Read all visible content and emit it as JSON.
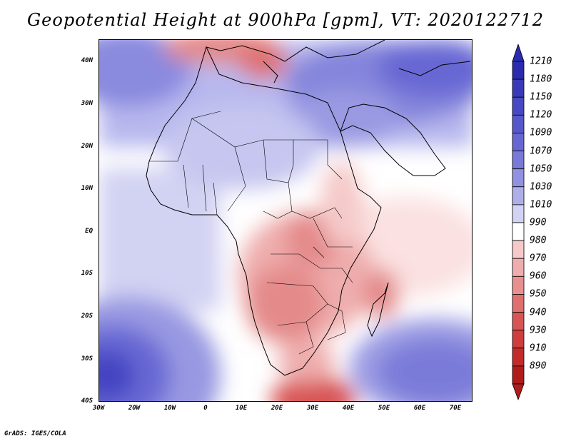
{
  "title": "Geopotential Height at 900hPa [gpm], VT: 2020122712",
  "credit": "GrADS: IGES/COLA",
  "lat_labels": [
    "40N",
    "30N",
    "20N",
    "10N",
    "EQ",
    "10S",
    "20S",
    "30S",
    "40S"
  ],
  "lon_labels": [
    "30W",
    "20W",
    "10W",
    "0",
    "10E",
    "20E",
    "30E",
    "40E",
    "50E",
    "60E",
    "70E"
  ],
  "colorbar": {
    "labels": [
      "1210",
      "1180",
      "1150",
      "1120",
      "1090",
      "1070",
      "1050",
      "1030",
      "1010",
      "990",
      "980",
      "970",
      "960",
      "950",
      "940",
      "930",
      "910",
      "890"
    ],
    "colors": [
      "#2b2bb0",
      "#3a3ab9",
      "#4848c4",
      "#5757cc",
      "#6767d4",
      "#7979d9",
      "#9191e1",
      "#aeaee9",
      "#d2d2f3",
      "#ffffff",
      "#f5c9c9",
      "#efadad",
      "#e89090",
      "#e07070",
      "#d85555",
      "#cf3d3d",
      "#c32b2b",
      "#b01c1c"
    ]
  },
  "chart_data": {
    "type": "heatmap",
    "title": "Geopotential Height at 900hPa [gpm], VT: 2020122712",
    "variable": "Geopotential Height",
    "level": "900hPa",
    "units": "gpm",
    "valid_time": "2020122712",
    "lon_range": [
      -30,
      75
    ],
    "lat_range": [
      -40,
      45
    ],
    "contour_levels": [
      890,
      910,
      930,
      940,
      950,
      960,
      970,
      980,
      990,
      1010,
      1030,
      1050,
      1070,
      1090,
      1120,
      1150,
      1180,
      1210
    ],
    "features": [
      {
        "region": "Southern Africa interior",
        "value_range": [
          950,
          980
        ]
      },
      {
        "region": "Mozambique Channel / Madagascar",
        "value_range": [
          950,
          980
        ]
      },
      {
        "region": "South of Cape (near 40S 30E)",
        "value_range": [
          930,
          960
        ]
      },
      {
        "region": "Western Mediterranean (near 42N 10E)",
        "value_range": [
          960,
          980
        ]
      },
      {
        "region": "Middle East / Arabia",
        "value_range": [
          1070,
          1120
        ]
      },
      {
        "region": "South Atlantic high (near 33S 28W)",
        "value_range": [
          1120,
          1150
        ]
      },
      {
        "region": "South Indian Ocean high (near 30S 60E)",
        "value_range": [
          1070,
          1090
        ]
      },
      {
        "region": "North Atlantic (near 40N 28W)",
        "value_range": [
          1070,
          1090
        ]
      }
    ]
  }
}
